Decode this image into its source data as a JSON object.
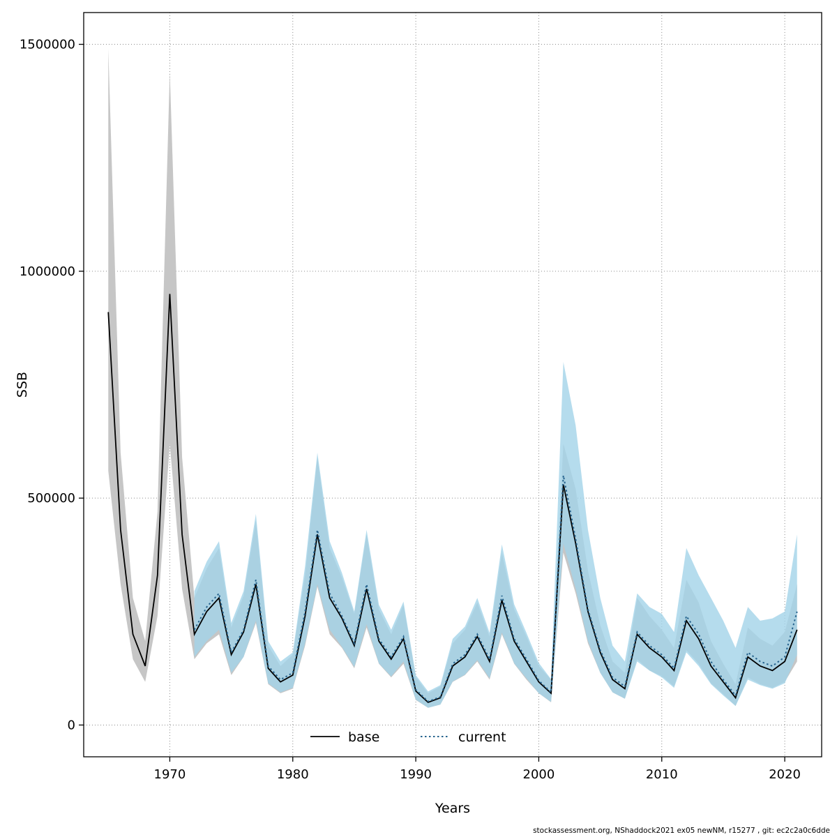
{
  "figure": {
    "background": "#ffffff",
    "footer": "stockassessment.org, NShaddock2021 ex05 newNM, r15277 , git: ec2c2a0c6dde"
  },
  "chart_data": {
    "type": "line",
    "title": "",
    "xlabel": "Years",
    "ylabel": "SSB",
    "xlim": [
      1963,
      2023
    ],
    "ylim": [
      -70000,
      1570000
    ],
    "xticks": [
      1970,
      1980,
      1990,
      2000,
      2010,
      2020
    ],
    "yticks": [
      0,
      500000,
      1000000,
      1500000
    ],
    "grid": true,
    "grid_color": "#8a8a8a",
    "box_color": "#000000",
    "legend": {
      "position": "bottom-center",
      "entries": [
        {
          "label": "base",
          "color": "#000000",
          "style": "solid"
        },
        {
          "label": "current",
          "color": "#27648e",
          "style": "dotted"
        }
      ]
    },
    "series": [
      {
        "name": "base",
        "line_color": "#000000",
        "band_color": "#c6c6c6",
        "band_opacity": 1,
        "line_style": "solid",
        "x": [
          1965,
          1966,
          1967,
          1968,
          1969,
          1970,
          1971,
          1972,
          1973,
          1974,
          1975,
          1976,
          1977,
          1978,
          1979,
          1980,
          1981,
          1982,
          1983,
          1984,
          1985,
          1986,
          1987,
          1988,
          1989,
          1990,
          1991,
          1992,
          1993,
          1994,
          1995,
          1996,
          1997,
          1998,
          1999,
          2000,
          2001,
          2002,
          2003,
          2004,
          2005,
          2006,
          2007,
          2008,
          2009,
          2010,
          2011,
          2012,
          2013,
          2014,
          2015,
          2016,
          2017,
          2018,
          2019,
          2020,
          2021
        ],
        "values": [
          910000,
          430000,
          200000,
          130000,
          330000,
          950000,
          420000,
          200000,
          250000,
          280000,
          155000,
          205000,
          310000,
          125000,
          95000,
          110000,
          240000,
          420000,
          280000,
          235000,
          175000,
          300000,
          185000,
          145000,
          190000,
          75000,
          50000,
          60000,
          130000,
          150000,
          195000,
          140000,
          275000,
          185000,
          140000,
          95000,
          70000,
          530000,
          400000,
          250000,
          160000,
          100000,
          80000,
          200000,
          170000,
          150000,
          120000,
          230000,
          190000,
          130000,
          95000,
          60000,
          150000,
          130000,
          120000,
          140000,
          210000
        ],
        "lower": [
          560000,
          310000,
          145000,
          95000,
          240000,
          620000,
          300000,
          145000,
          180000,
          200000,
          110000,
          150000,
          225000,
          90000,
          70000,
          80000,
          175000,
          305000,
          200000,
          170000,
          125000,
          215000,
          135000,
          105000,
          135000,
          55000,
          38000,
          45000,
          95000,
          110000,
          140000,
          100000,
          200000,
          135000,
          100000,
          70000,
          50000,
          380000,
          290000,
          180000,
          115000,
          72000,
          58000,
          145000,
          120000,
          108000,
          85000,
          165000,
          135000,
          92000,
          68000,
          42000,
          105000,
          90000,
          82000,
          95000,
          140000
        ],
        "upper": [
          1490000,
          600000,
          280000,
          185000,
          470000,
          1440000,
          590000,
          280000,
          345000,
          390000,
          215000,
          285000,
          450000,
          175000,
          130000,
          155000,
          330000,
          590000,
          390000,
          325000,
          245000,
          420000,
          255000,
          200000,
          265000,
          105000,
          70000,
          85000,
          180000,
          210000,
          270000,
          195000,
          380000,
          255000,
          195000,
          130000,
          100000,
          620000,
          520000,
          340000,
          220000,
          140000,
          115000,
          280000,
          240000,
          210000,
          170000,
          320000,
          270000,
          185000,
          135000,
          90000,
          215000,
          190000,
          175000,
          205000,
          310000
        ]
      },
      {
        "name": "current",
        "line_color": "#27648e",
        "band_color": "#a3d3e8",
        "band_opacity": 0.8,
        "line_style": "dotted",
        "x": [
          1972,
          1973,
          1974,
          1975,
          1976,
          1977,
          1978,
          1979,
          1980,
          1981,
          1982,
          1983,
          1984,
          1985,
          1986,
          1987,
          1988,
          1989,
          1990,
          1991,
          1992,
          1993,
          1994,
          1995,
          1996,
          1997,
          1998,
          1999,
          2000,
          2001,
          2002,
          2003,
          2004,
          2005,
          2006,
          2007,
          2008,
          2009,
          2010,
          2011,
          2012,
          2013,
          2014,
          2015,
          2016,
          2017,
          2018,
          2019,
          2020,
          2021
        ],
        "values": [
          210000,
          260000,
          290000,
          160000,
          210000,
          320000,
          130000,
          100000,
          115000,
          250000,
          430000,
          290000,
          240000,
          180000,
          310000,
          190000,
          150000,
          195000,
          78000,
          52000,
          62000,
          135000,
          155000,
          200000,
          145000,
          285000,
          190000,
          145000,
          98000,
          72000,
          550000,
          410000,
          255000,
          165000,
          105000,
          85000,
          205000,
          175000,
          155000,
          125000,
          240000,
          200000,
          140000,
          100000,
          65000,
          160000,
          140000,
          130000,
          150000,
          250000
        ],
        "lower": [
          150000,
          185000,
          210000,
          115000,
          150000,
          230000,
          92000,
          72000,
          82000,
          180000,
          310000,
          210000,
          172000,
          128000,
          222000,
          136000,
          107000,
          140000,
          56000,
          38000,
          45000,
          96000,
          111000,
          143000,
          103000,
          204000,
          136000,
          103000,
          70000,
          51000,
          400000,
          300000,
          185000,
          115000,
          72000,
          58000,
          140000,
          120000,
          105000,
          82000,
          160000,
          130000,
          90000,
          65000,
          42000,
          100000,
          88000,
          80000,
          92000,
          155000
        ],
        "upper": [
          295000,
          360000,
          405000,
          225000,
          295000,
          465000,
          185000,
          140000,
          160000,
          350000,
          600000,
          405000,
          335000,
          250000,
          430000,
          265000,
          210000,
          272000,
          110000,
          74000,
          88000,
          190000,
          217000,
          280000,
          203000,
          398000,
          266000,
          203000,
          137000,
          101000,
          800000,
          660000,
          430000,
          280000,
          175000,
          140000,
          290000,
          260000,
          245000,
          205000,
          390000,
          330000,
          280000,
          230000,
          170000,
          260000,
          230000,
          235000,
          250000,
          420000
        ]
      }
    ]
  }
}
